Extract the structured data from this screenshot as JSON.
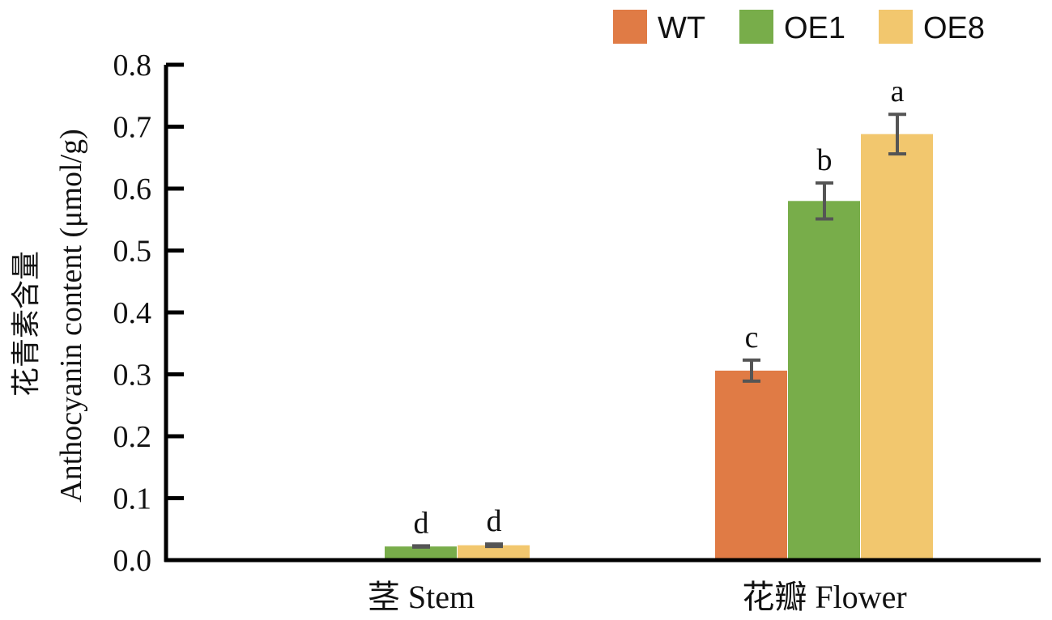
{
  "chart_data": {
    "type": "bar",
    "categories": [
      "茎 Stem",
      "花瓣 Flower"
    ],
    "series": [
      {
        "name": "WT",
        "color": "#e07b45",
        "values": [
          0.0,
          0.306
        ],
        "errors": [
          0.0,
          0.017
        ],
        "sig": [
          "",
          "c"
        ]
      },
      {
        "name": "OE1",
        "color": "#78ad4a",
        "values": [
          0.022,
          0.58
        ],
        "errors": [
          0.001,
          0.029
        ],
        "sig": [
          "d",
          "b"
        ]
      },
      {
        "name": "OE8",
        "color": "#f2c76e",
        "values": [
          0.024,
          0.688
        ],
        "errors": [
          0.002,
          0.032
        ],
        "sig": [
          "d",
          "a"
        ]
      }
    ],
    "ylabel": "Anthocyanin content (μmol/g)",
    "ylabel_cn": "花青素含量",
    "ylim": [
      0,
      0.8
    ],
    "yticks": [
      "0.0",
      "0.1",
      "0.2",
      "0.3",
      "0.4",
      "0.5",
      "0.6",
      "0.7",
      "0.8"
    ],
    "grid": false,
    "legend_position": "top-right"
  }
}
